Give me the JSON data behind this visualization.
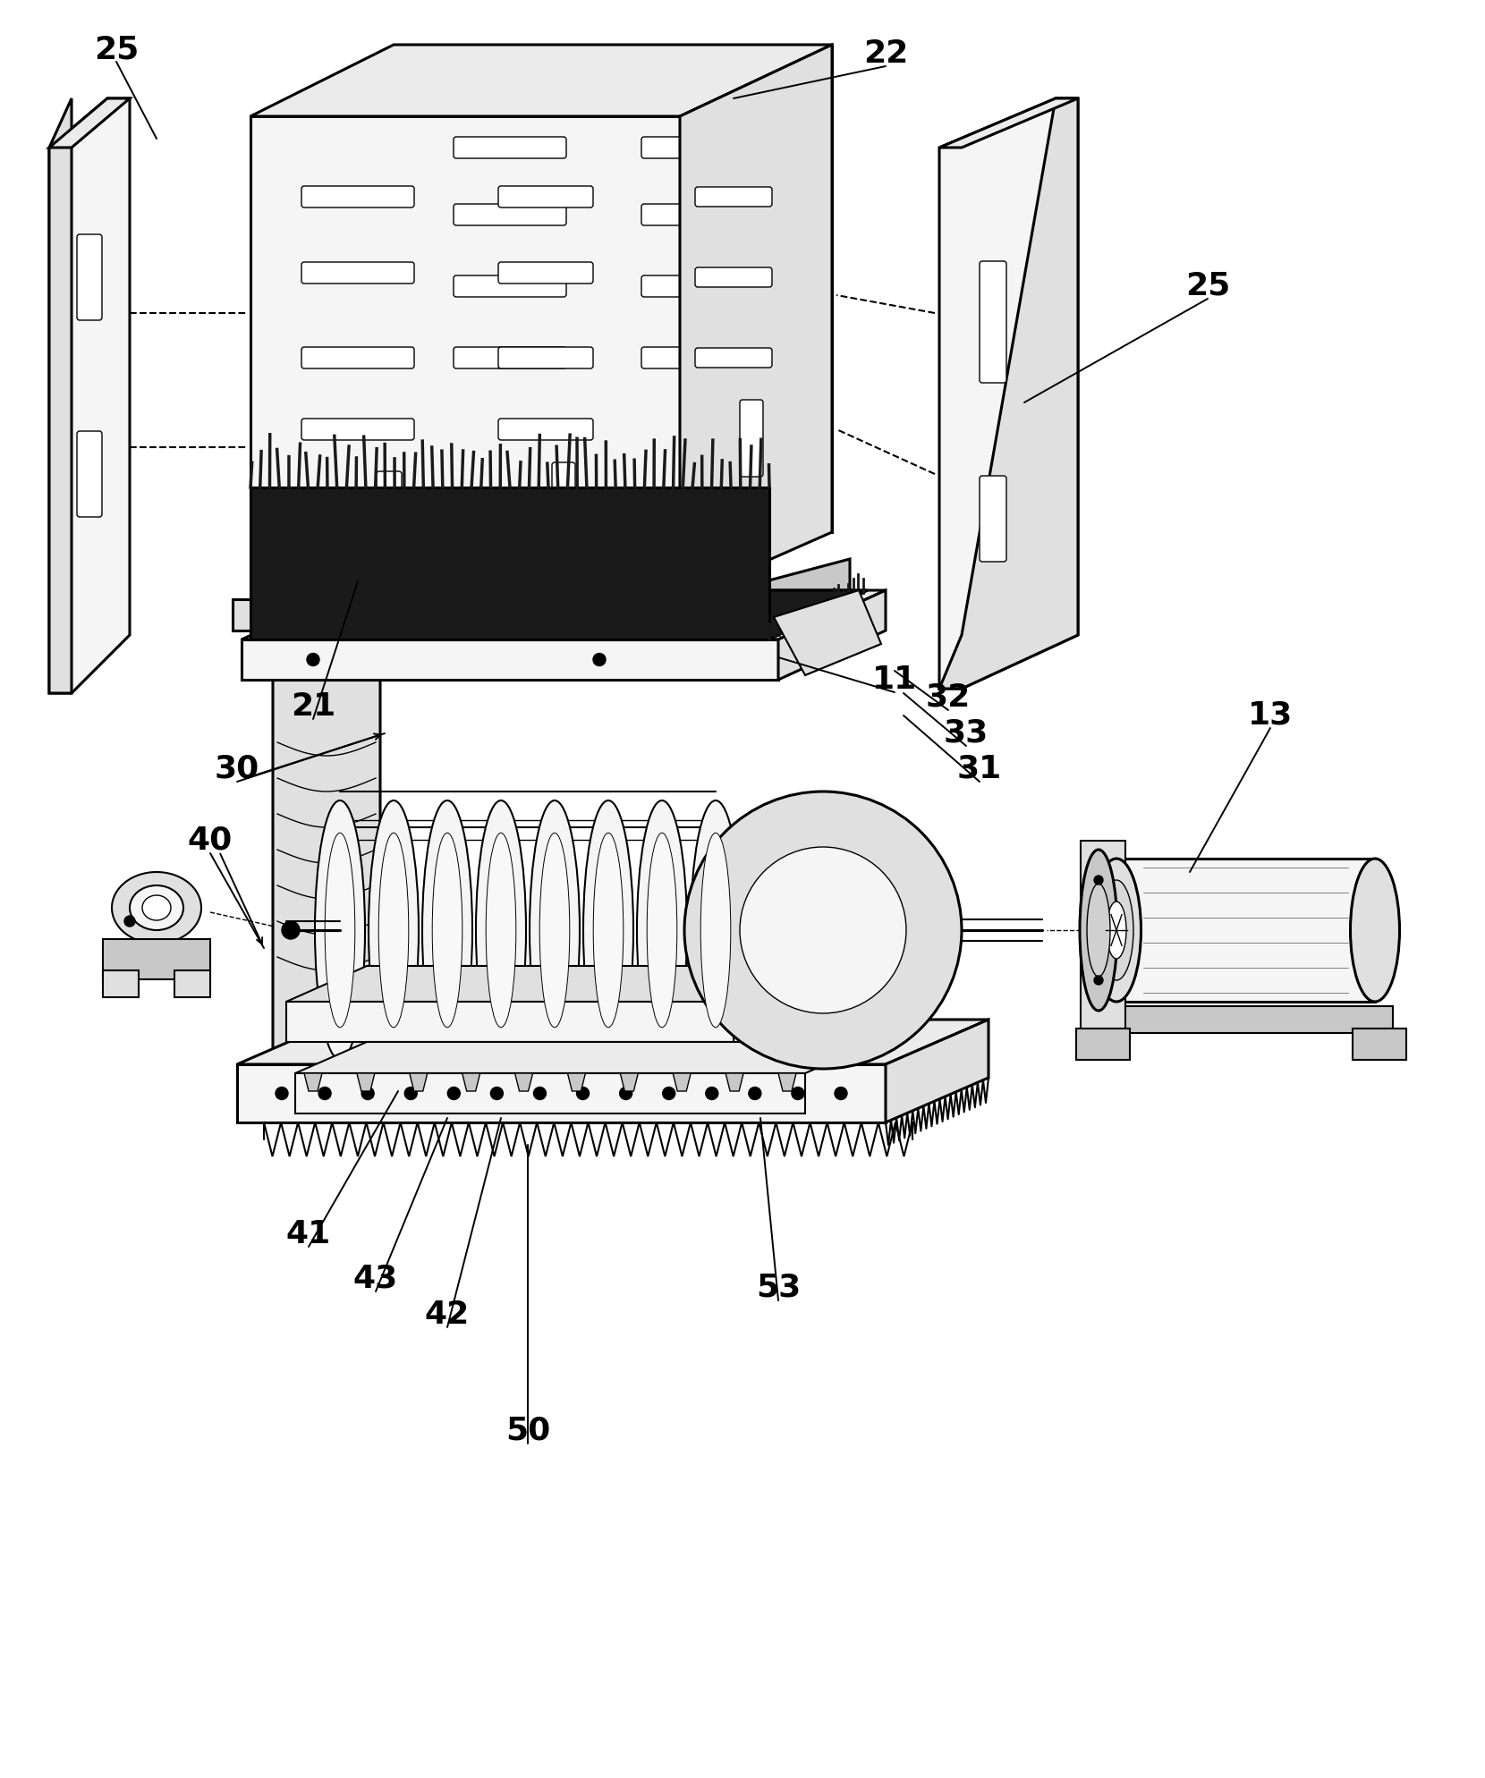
{
  "bg_color": "#ffffff",
  "line_color": "#000000",
  "lw_main": 2.2,
  "lw_detail": 1.5,
  "lw_thin": 1.0,
  "shade_front": "#f5f5f5",
  "shade_side": "#e0e0e0",
  "shade_top": "#ebebeb",
  "shade_dark": "#c8c8c8",
  "shade_black": "#1a1a1a"
}
